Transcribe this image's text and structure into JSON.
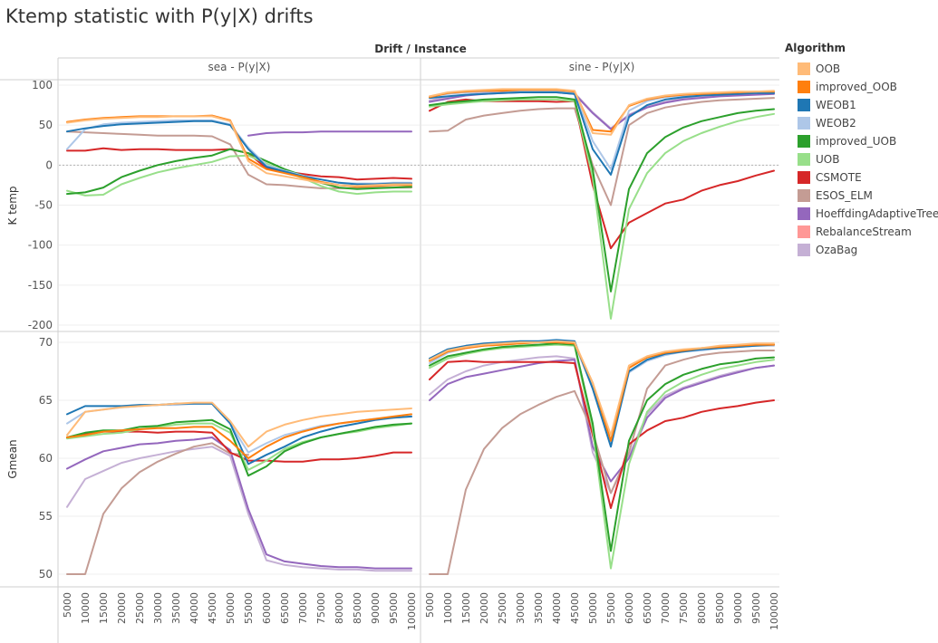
{
  "title": "Ktemp statistic with P(y|X) drifts",
  "chart_data": {
    "type": "line",
    "header": "Drift / Instance",
    "columns": [
      "sea - P(y|X)",
      "sine - P(y|X)"
    ],
    "rows": [
      {
        "ylabel": "K temp",
        "ylim": [
          -200,
          100
        ],
        "ticks": [
          100,
          50,
          0,
          -50,
          -100,
          -150,
          -200
        ],
        "zero_line": true
      },
      {
        "ylabel": "Gmean",
        "ylim": [
          49,
          71
        ],
        "ticks": [
          70,
          65,
          60,
          55,
          50
        ],
        "zero_line": false
      }
    ],
    "x": [
      5000,
      10000,
      15000,
      20000,
      25000,
      30000,
      35000,
      40000,
      45000,
      50000,
      55000,
      60000,
      65000,
      70000,
      75000,
      80000,
      85000,
      90000,
      95000,
      100000
    ],
    "legend_title": "Algorithm",
    "algorithms": [
      {
        "name": "OOB",
        "color": "#ffbb78"
      },
      {
        "name": "improved_OOB",
        "color": "#ff7f0e"
      },
      {
        "name": "WEOB1",
        "color": "#1f77b4"
      },
      {
        "name": "WEOB2",
        "color": "#aec7e8"
      },
      {
        "name": "improved_UOB",
        "color": "#2ca02c"
      },
      {
        "name": "UOB",
        "color": "#98df8a"
      },
      {
        "name": "CSMOTE",
        "color": "#d62728"
      },
      {
        "name": "ESOS_ELM",
        "color": "#c49c94"
      },
      {
        "name": "HoeffdingAdaptiveTree",
        "color": "#9467bd"
      },
      {
        "name": "RebalanceStream",
        "color": "#ff9896"
      },
      {
        "name": "OzaBag",
        "color": "#c5b0d5"
      }
    ],
    "panels": [
      {
        "row": 0,
        "col": 0,
        "series": {
          "OOB": [
            53,
            56,
            58,
            59,
            60,
            60,
            61,
            61,
            61,
            55,
            5,
            -10,
            -14,
            -18,
            -22,
            -25,
            -26,
            -25,
            -24,
            -24
          ],
          "improved_OOB": [
            54,
            57,
            59,
            60,
            61,
            61,
            61,
            61,
            62,
            56,
            8,
            -5,
            -10,
            -15,
            -21,
            -25,
            -27,
            -26,
            -25,
            -25
          ],
          "WEOB1": [
            42,
            46,
            49,
            51,
            52,
            53,
            54,
            55,
            55,
            50,
            20,
            -2,
            -8,
            -14,
            -18,
            -22,
            -24,
            -24,
            -23,
            -23
          ],
          "WEOB2": [
            20,
            45,
            51,
            53,
            54,
            55,
            56,
            56,
            56,
            51,
            22,
            0,
            -7,
            -13,
            -18,
            -22,
            -23,
            -23,
            -22,
            -22
          ],
          "improved_UOB": [
            -36,
            -34,
            -28,
            -15,
            -7,
            0,
            5,
            9,
            12,
            20,
            15,
            5,
            -5,
            -13,
            -22,
            -28,
            -30,
            -29,
            -28,
            -27
          ],
          "UOB": [
            -32,
            -38,
            -37,
            -24,
            -16,
            -9,
            -4,
            0,
            4,
            11,
            12,
            2,
            -8,
            -16,
            -26,
            -33,
            -36,
            -34,
            -33,
            -33
          ],
          "CSMOTE": [
            18,
            18,
            21,
            19,
            20,
            20,
            19,
            19,
            19,
            20,
            15,
            -4,
            -8,
            -11,
            -14,
            -15,
            -18,
            -17,
            -16,
            -17
          ],
          "ESOS_ELM": [
            42,
            41,
            40,
            39,
            38,
            37,
            37,
            37,
            36,
            26,
            -12,
            -24,
            -25,
            -27,
            -29,
            -29,
            -29,
            -28,
            -28,
            -28
          ],
          "HoeffdingAdaptiveTree": [
            null,
            null,
            null,
            null,
            null,
            null,
            null,
            null,
            null,
            null,
            37,
            40,
            41,
            41,
            42,
            42,
            42,
            42,
            42,
            42
          ],
          "RebalanceStream": [
            null,
            null,
            null,
            null,
            null,
            null,
            null,
            null,
            null,
            null,
            null,
            null,
            null,
            null,
            null,
            null,
            null,
            null,
            null,
            null
          ],
          "OzaBag": [
            null,
            null,
            null,
            null,
            null,
            null,
            null,
            null,
            null,
            null,
            null,
            null,
            null,
            null,
            null,
            null,
            null,
            null,
            null,
            null
          ]
        }
      },
      {
        "row": 0,
        "col": 1,
        "series": {
          "OOB": [
            86,
            91,
            93,
            94,
            95,
            95,
            95,
            95,
            93,
            40,
            38,
            75,
            83,
            87,
            89,
            90,
            91,
            92,
            92,
            93
          ],
          "improved_OOB": [
            85,
            90,
            92,
            93,
            93,
            94,
            94,
            94,
            92,
            44,
            42,
            74,
            82,
            86,
            88,
            89,
            90,
            91,
            92,
            92
          ],
          "WEOB1": [
            84,
            86,
            88,
            89,
            90,
            91,
            91,
            91,
            89,
            20,
            -12,
            60,
            75,
            82,
            85,
            87,
            88,
            89,
            90,
            90
          ],
          "WEOB2": [
            86,
            89,
            91,
            92,
            93,
            93,
            93,
            93,
            91,
            30,
            -5,
            68,
            80,
            85,
            87,
            88,
            89,
            90,
            91,
            91
          ],
          "improved_UOB": [
            75,
            78,
            80,
            82,
            83,
            84,
            85,
            85,
            82,
            -5,
            -158,
            -30,
            15,
            35,
            47,
            55,
            60,
            65,
            68,
            70
          ],
          "UOB": [
            73,
            76,
            78,
            80,
            81,
            82,
            82,
            82,
            80,
            -15,
            -192,
            -55,
            -10,
            15,
            30,
            40,
            48,
            55,
            60,
            64
          ],
          "CSMOTE": [
            68,
            79,
            82,
            80,
            80,
            80,
            80,
            79,
            80,
            -25,
            -104,
            -72,
            -60,
            -48,
            -43,
            -32,
            -25,
            -20,
            -13,
            -7
          ],
          "ESOS_ELM": [
            42,
            43,
            57,
            62,
            65,
            68,
            70,
            71,
            71,
            0,
            -50,
            50,
            65,
            72,
            76,
            79,
            81,
            82,
            83,
            84
          ],
          "HoeffdingAdaptiveTree": [
            79,
            83,
            87,
            89,
            90,
            91,
            91,
            91,
            89,
            65,
            45,
            62,
            72,
            78,
            82,
            84,
            86,
            87,
            88,
            89
          ],
          "RebalanceStream": [
            null,
            null,
            null,
            null,
            null,
            null,
            null,
            null,
            null,
            null,
            null,
            null,
            null,
            null,
            null,
            null,
            null,
            null,
            null,
            null
          ],
          "OzaBag": [
            81,
            85,
            88,
            90,
            91,
            92,
            92,
            92,
            90,
            66,
            46,
            63,
            73,
            79,
            83,
            85,
            87,
            88,
            89,
            90
          ]
        }
      },
      {
        "row": 1,
        "col": 0,
        "series": {
          "OOB": [
            62,
            64,
            64.2,
            64.4,
            64.5,
            64.6,
            64.7,
            64.8,
            64.8,
            63.2,
            61,
            62.3,
            62.9,
            63.3,
            63.6,
            63.8,
            64,
            64.1,
            64.2,
            64.3
          ],
          "improved_OOB": [
            61.8,
            62,
            62.3,
            62.4,
            62.5,
            62.6,
            62.6,
            62.7,
            62.7,
            61.5,
            60,
            61,
            61.8,
            62.3,
            62.7,
            63,
            63.2,
            63.4,
            63.6,
            63.8
          ],
          "WEOB1": [
            63.8,
            64.5,
            64.5,
            64.5,
            64.6,
            64.6,
            64.7,
            64.7,
            64.7,
            63,
            59.5,
            60.3,
            61,
            61.8,
            62.3,
            62.7,
            63,
            63.3,
            63.5,
            63.6
          ],
          "WEOB2": [
            63,
            64,
            64.2,
            64.4,
            64.5,
            64.6,
            64.6,
            64.7,
            64.7,
            63,
            60.5,
            61.3,
            62,
            62.4,
            62.8,
            63,
            63.2,
            63.4,
            63.5,
            63.6
          ],
          "improved_UOB": [
            61.8,
            62.2,
            62.4,
            62.4,
            62.7,
            62.8,
            63.1,
            63.2,
            63.3,
            62.5,
            58.5,
            59.3,
            60.6,
            61.3,
            61.8,
            62.1,
            62.4,
            62.7,
            62.9,
            63
          ],
          "UOB": [
            61.7,
            61.9,
            62.1,
            62.2,
            62.5,
            62.7,
            62.9,
            63,
            63,
            62.2,
            59,
            59.8,
            60.8,
            61.4,
            61.8,
            62.1,
            62.3,
            62.6,
            62.8,
            63
          ],
          "CSMOTE": [
            61.8,
            62.1,
            62.3,
            62.3,
            62.3,
            62.2,
            62.3,
            62.3,
            62.2,
            60.5,
            59.8,
            59.8,
            59.7,
            59.7,
            59.9,
            59.9,
            60,
            60.2,
            60.5,
            60.5
          ],
          "ESOS_ELM": [
            50,
            50,
            55.2,
            57.4,
            58.8,
            59.7,
            60.4,
            61,
            61.3,
            60.4,
            60.3,
            null,
            null,
            null,
            null,
            null,
            null,
            null,
            null,
            null
          ],
          "HoeffdingAdaptiveTree": [
            59.1,
            59.9,
            60.6,
            60.9,
            61.2,
            61.3,
            61.5,
            61.6,
            61.8,
            60.7,
            55.6,
            51.7,
            51.1,
            50.9,
            50.7,
            50.6,
            50.6,
            50.5,
            50.5,
            50.5
          ],
          "RebalanceStream": [
            null,
            null,
            null,
            null,
            null,
            null,
            null,
            null,
            null,
            null,
            null,
            null,
            null,
            null,
            null,
            null,
            null,
            null,
            null,
            null
          ],
          "OzaBag": [
            55.8,
            58.2,
            58.9,
            59.6,
            60,
            60.3,
            60.6,
            60.8,
            61,
            60.2,
            55.2,
            51.2,
            50.8,
            50.6,
            50.5,
            50.4,
            50.4,
            50.3,
            50.3,
            50.3
          ]
        }
      },
      {
        "row": 1,
        "col": 1,
        "series": {
          "OOB": [
            68.5,
            69.3,
            69.6,
            69.8,
            69.9,
            70,
            70,
            70.1,
            70,
            66.5,
            62,
            68,
            68.8,
            69.2,
            69.4,
            69.5,
            69.7,
            69.8,
            69.9,
            69.9
          ],
          "improved_OOB": [
            68.4,
            69.2,
            69.5,
            69.7,
            69.8,
            69.9,
            70,
            70,
            69.9,
            66.5,
            61.5,
            67.8,
            68.7,
            69.1,
            69.3,
            69.5,
            69.6,
            69.7,
            69.8,
            69.8
          ],
          "WEOB1": [
            68.6,
            69.4,
            69.7,
            69.9,
            70,
            70.1,
            70.1,
            70.2,
            70.1,
            66,
            61,
            67.5,
            68.5,
            69,
            69.2,
            69.4,
            69.5,
            69.6,
            69.7,
            69.8
          ],
          "WEOB2": [
            68.2,
            69.1,
            69.5,
            69.7,
            69.8,
            69.9,
            70,
            70,
            69.9,
            66,
            61.2,
            67.4,
            68.4,
            68.9,
            69.2,
            69.3,
            69.5,
            69.6,
            69.7,
            69.7
          ],
          "improved_UOB": [
            68,
            68.8,
            69.1,
            69.4,
            69.6,
            69.7,
            69.8,
            69.9,
            69.8,
            63,
            52,
            61.5,
            65,
            66.4,
            67.2,
            67.7,
            68.1,
            68.3,
            68.6,
            68.7
          ],
          "UOB": [
            67.8,
            68.6,
            69,
            69.3,
            69.5,
            69.6,
            69.7,
            69.8,
            69.7,
            62.5,
            50.5,
            59.5,
            64,
            65.7,
            66.6,
            67.2,
            67.7,
            68,
            68.3,
            68.5
          ],
          "CSMOTE": [
            66.8,
            68.3,
            68.4,
            68.3,
            68.3,
            68.3,
            68.3,
            68.3,
            68.2,
            62,
            55.7,
            61.2,
            62.4,
            63.2,
            63.5,
            64,
            64.3,
            64.5,
            64.8,
            65
          ],
          "ESOS_ELM": [
            50,
            50,
            57.3,
            60.8,
            62.6,
            63.8,
            64.6,
            65.3,
            65.8,
            62.3,
            57,
            60.5,
            66,
            68,
            68.5,
            68.9,
            69.1,
            69.2,
            69.3,
            69.3
          ],
          "HoeffdingAdaptiveTree": [
            65,
            66.4,
            67,
            67.3,
            67.6,
            67.9,
            68.2,
            68.4,
            68.5,
            61,
            58,
            60,
            63.5,
            65.2,
            66,
            66.5,
            67,
            67.4,
            67.8,
            68
          ],
          "RebalanceStream": [
            null,
            null,
            null,
            null,
            null,
            null,
            null,
            null,
            null,
            null,
            null,
            null,
            null,
            null,
            null,
            null,
            null,
            null,
            null,
            null
          ],
          "OzaBag": [
            65.5,
            66.8,
            67.5,
            68,
            68.3,
            68.5,
            68.7,
            68.8,
            68.6,
            60.5,
            57,
            60.2,
            63.8,
            65.4,
            66.1,
            66.6,
            67.1,
            67.5,
            67.8,
            68
          ]
        }
      }
    ]
  }
}
